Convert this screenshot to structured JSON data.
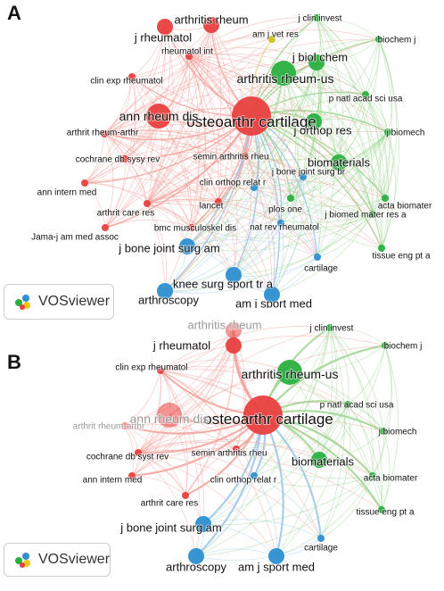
{
  "panels": [
    {
      "id": "A",
      "letter": "A",
      "logo_text": "VOSviewer",
      "nodes": [
        {
          "key": "osteo",
          "label": "osteoarthr cartilage",
          "cluster": "red",
          "size": "xl"
        },
        {
          "key": "arthrheum",
          "label": "arthritis rheum",
          "cluster": "red",
          "size": "md"
        },
        {
          "key": "jrheum",
          "label": "j rheumatol",
          "cluster": "red",
          "size": "md"
        },
        {
          "key": "rheumint",
          "label": "rheumatol int",
          "cluster": "red",
          "size": "sm"
        },
        {
          "key": "clinexp",
          "label": "clin exp rheumatol",
          "cluster": "red",
          "size": "sm"
        },
        {
          "key": "annrheum",
          "label": "ann rheum dis",
          "cluster": "red",
          "size": "lg"
        },
        {
          "key": "arthritrheum",
          "label": "arthrit rheum-arthr",
          "cluster": "red",
          "size": "sm"
        },
        {
          "key": "cochrane",
          "label": "cochrane db sysy rev",
          "cluster": "red",
          "size": "sm"
        },
        {
          "key": "annintern",
          "label": "ann intern med",
          "cluster": "red",
          "size": "sm"
        },
        {
          "key": "arthcare",
          "label": "arthrit care res",
          "cluster": "red",
          "size": "sm"
        },
        {
          "key": "jama",
          "label": "Jama-j am med assoc",
          "cluster": "red",
          "size": "sm"
        },
        {
          "key": "amjvet",
          "label": "am j vet res",
          "cluster": "yellow",
          "size": "sm"
        },
        {
          "key": "arthrheumus",
          "label": "arthritis rheum-us",
          "cluster": "green",
          "size": "lg"
        },
        {
          "key": "jclininv",
          "label": "j clin invest",
          "cluster": "green",
          "size": "sm"
        },
        {
          "key": "biochemj",
          "label": "biochem j",
          "cluster": "green",
          "size": "sm"
        },
        {
          "key": "jbiolchem",
          "label": "j biol chem",
          "cluster": "green",
          "size": "md"
        },
        {
          "key": "pnas",
          "label": "p natl acad sci usa",
          "cluster": "green",
          "size": "sm"
        },
        {
          "key": "jorthop",
          "label": "j orthop res",
          "cluster": "green",
          "size": "md"
        },
        {
          "key": "jbiomech",
          "label": "j biomech",
          "cluster": "green",
          "size": "sm"
        },
        {
          "key": "biomat",
          "label": "biomaterials",
          "cluster": "green",
          "size": "md"
        },
        {
          "key": "actabio",
          "label": "acta biomater",
          "cluster": "green",
          "size": "sm"
        },
        {
          "key": "jbiomedmat",
          "label": "j biomed mater res a",
          "cluster": "green",
          "size": "sm"
        },
        {
          "key": "tissue",
          "label": "tissue eng pt a",
          "cluster": "green",
          "size": "sm"
        },
        {
          "key": "plosone",
          "label": "plos one",
          "cluster": "green",
          "size": "sm"
        },
        {
          "key": "semin",
          "label": "semin arthritis rheu",
          "cluster": "red",
          "size": "sm"
        },
        {
          "key": "jbonebr",
          "label": "j bone joint surg br",
          "cluster": "blue",
          "size": "sm"
        },
        {
          "key": "cliorth",
          "label": "clin orthop relat r",
          "cluster": "blue",
          "size": "sm"
        },
        {
          "key": "lancet",
          "label": "lancet",
          "cluster": "red",
          "size": "sm"
        },
        {
          "key": "bmc",
          "label": "bmc musculoskel dis",
          "cluster": "red",
          "size": "sm"
        },
        {
          "key": "natrev",
          "label": "nat rev rheumatol",
          "cluster": "blue",
          "size": "sm"
        },
        {
          "key": "jbonejoint",
          "label": "j bone joint surg am",
          "cluster": "blue",
          "size": "md"
        },
        {
          "key": "cartilage",
          "label": "cartilage",
          "cluster": "blue",
          "size": "sm"
        },
        {
          "key": "knee",
          "label": "knee surg sport tr a",
          "cluster": "blue",
          "size": "md"
        },
        {
          "key": "arthroscopy",
          "label": "arthroscopy",
          "cluster": "blue",
          "size": "md"
        },
        {
          "key": "amjsport",
          "label": "am j sport med",
          "cluster": "blue",
          "size": "md"
        }
      ]
    },
    {
      "id": "B",
      "letter": "B",
      "logo_text": "VOSviewer",
      "nodes": [
        {
          "key": "osteo",
          "label": "osteoarthr cartilage",
          "cluster": "red",
          "size": "xl"
        },
        {
          "key": "arthrheum",
          "label": "arthritis rheum",
          "cluster": "red",
          "size": "md",
          "faded": true
        },
        {
          "key": "jrheum",
          "label": "j rheumatol",
          "cluster": "red",
          "size": "md"
        },
        {
          "key": "clinexp",
          "label": "clin exp rheumatol",
          "cluster": "red",
          "size": "sm"
        },
        {
          "key": "annrheum",
          "label": "ann rheum dis",
          "cluster": "red",
          "size": "lg",
          "faded": true
        },
        {
          "key": "arthritrheum",
          "label": "arthrit rheum-arthr",
          "cluster": "red",
          "size": "sm",
          "faded": true
        },
        {
          "key": "cochrane",
          "label": "cochrane db syst rev",
          "cluster": "red",
          "size": "sm"
        },
        {
          "key": "annintern",
          "label": "ann intern med",
          "cluster": "red",
          "size": "sm"
        },
        {
          "key": "arthcare",
          "label": "arthrit care res",
          "cluster": "red",
          "size": "sm"
        },
        {
          "key": "jclininv",
          "label": "j clin invest",
          "cluster": "green",
          "size": "sm"
        },
        {
          "key": "biochemj",
          "label": "biochem j",
          "cluster": "green",
          "size": "sm"
        },
        {
          "key": "arthrheumus",
          "label": "arthritis rheum-us",
          "cluster": "green",
          "size": "lg"
        },
        {
          "key": "pnas",
          "label": "p natl acad sci usa",
          "cluster": "green",
          "size": "sm"
        },
        {
          "key": "jbiomech",
          "label": "j biomech",
          "cluster": "green",
          "size": "sm"
        },
        {
          "key": "biomat",
          "label": "biomaterials",
          "cluster": "green",
          "size": "md"
        },
        {
          "key": "actabio",
          "label": "acta biomater",
          "cluster": "green",
          "size": "sm"
        },
        {
          "key": "tissue",
          "label": "tissue eng pt a",
          "cluster": "green",
          "size": "sm"
        },
        {
          "key": "semin",
          "label": "semin arthritis rheu",
          "cluster": "red",
          "size": "sm"
        },
        {
          "key": "cliorth",
          "label": "clin orthop relat r",
          "cluster": "blue",
          "size": "sm"
        },
        {
          "key": "jbonejoint",
          "label": "j bone joint surg am",
          "cluster": "blue",
          "size": "md"
        },
        {
          "key": "cartilage",
          "label": "cartilage",
          "cluster": "blue",
          "size": "sm"
        },
        {
          "key": "arthroscopy",
          "label": "arthroscopy",
          "cluster": "blue",
          "size": "md"
        },
        {
          "key": "amjsport",
          "label": "am j sport med",
          "cluster": "blue",
          "size": "md"
        }
      ]
    }
  ],
  "cluster_colors": {
    "red": "#e8403f",
    "green": "#2ab040",
    "blue": "#2d8fd0",
    "yellow": "#c9c21a"
  },
  "edge_colors": {
    "red": "#f2a19b",
    "green": "#9bd68f",
    "blue": "#9cc6ea",
    "yellow": "#e0dc8a"
  }
}
